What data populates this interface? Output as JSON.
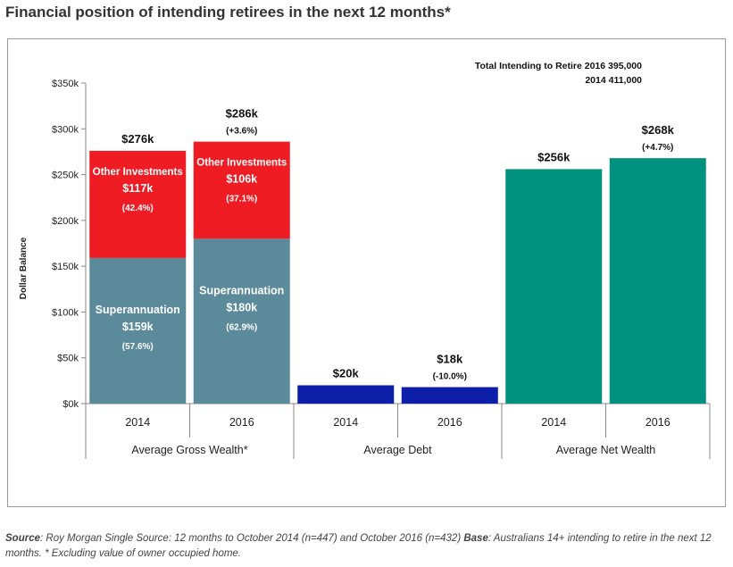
{
  "title": "Financial position of intending retirees in the next 12 months*",
  "source": {
    "source_label": "Source",
    "source_text": ": Roy Morgan Single Source: 12 months to October 2014 (n=447) and October 2016 (n=432) ",
    "base_label": "Base",
    "base_text": ": Australians  14+ intending to retire in the next 12 months. * Excluding value of owner occupied home."
  },
  "chart_data": {
    "type": "bar",
    "title": "Financial position of intending retirees in the next 12 months*",
    "ylabel": "Dollar Balance",
    "xlabel": "",
    "ylim": [
      0,
      350
    ],
    "yticks": [
      0,
      50,
      100,
      150,
      200,
      250,
      300,
      350
    ],
    "ytick_labels": [
      "$0k",
      "$50k",
      "$100k",
      "$150k",
      "$200k",
      "$250k",
      "$300k",
      "$350k"
    ],
    "grid": false,
    "colors": {
      "superannuation": "#5b8a9b",
      "other_investments": "#f01c24",
      "debt": "#0d1fa8",
      "net_wealth": "#00927f"
    },
    "totals_note": {
      "line1": "Total Intending to Retire 2016  395,000",
      "line2": "2014  411,000"
    },
    "groups": [
      {
        "name": "Average Gross Wealth*",
        "bars": [
          {
            "year": "2014",
            "total": 276,
            "total_label": "$276k",
            "change_label": "",
            "segments": [
              {
                "series": "Superannuation",
                "value": 159,
                "name_label": "Superannuation",
                "value_label": "$159k",
                "pct_label": "(57.6%)",
                "color_key": "superannuation"
              },
              {
                "series": "Other Investments",
                "value": 117,
                "name_label": "Other Investments",
                "value_label": "$117k",
                "pct_label": "(42.4%)",
                "color_key": "other_investments"
              }
            ]
          },
          {
            "year": "2016",
            "total": 286,
            "total_label": "$286k",
            "change_label": "(+3.6%)",
            "segments": [
              {
                "series": "Superannuation",
                "value": 180,
                "name_label": "Superannuation",
                "value_label": "$180k",
                "pct_label": "(62.9%)",
                "color_key": "superannuation"
              },
              {
                "series": "Other Investments",
                "value": 106,
                "name_label": "Other Investments",
                "value_label": "$106k",
                "pct_label": "(37.1%)",
                "color_key": "other_investments"
              }
            ]
          }
        ]
      },
      {
        "name": "Average Debt",
        "bars": [
          {
            "year": "2014",
            "total": 20,
            "total_label": "$20k",
            "change_label": "",
            "segments": [
              {
                "series": "Debt",
                "value": 20,
                "color_key": "debt"
              }
            ]
          },
          {
            "year": "2016",
            "total": 18,
            "total_label": "$18k",
            "change_label": "(-10.0%)",
            "segments": [
              {
                "series": "Debt",
                "value": 18,
                "color_key": "debt"
              }
            ]
          }
        ]
      },
      {
        "name": "Average Net Wealth",
        "bars": [
          {
            "year": "2014",
            "total": 256,
            "total_label": "$256k",
            "change_label": "",
            "segments": [
              {
                "series": "Net Wealth",
                "value": 256,
                "color_key": "net_wealth"
              }
            ]
          },
          {
            "year": "2016",
            "total": 268,
            "total_label": "$268k",
            "change_label": "(+4.7%)",
            "segments": [
              {
                "series": "Net Wealth",
                "value": 268,
                "color_key": "net_wealth"
              }
            ]
          }
        ]
      }
    ]
  }
}
